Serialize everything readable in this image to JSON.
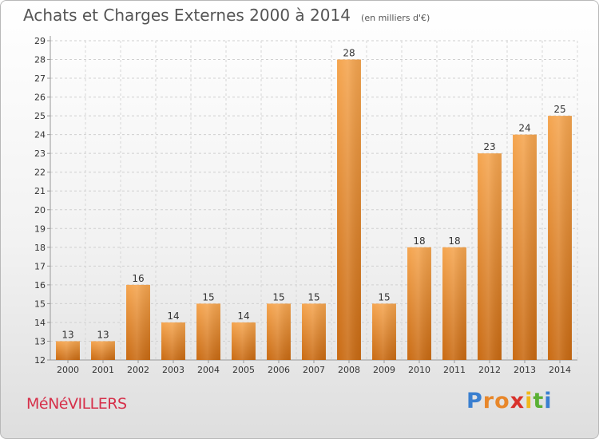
{
  "header": {
    "title": "Achats et Charges Externes 2000 à 2014",
    "subtitle": "(en milliers d'€)"
  },
  "place": "MéNéVILLERS",
  "logo": {
    "letters": [
      "P",
      "r",
      "o",
      "x",
      "i",
      "t",
      "i"
    ],
    "colors": [
      "#3a7fd0",
      "#e8872a",
      "#e8872a",
      "#d8322c",
      "#f0b81c",
      "#5bb034",
      "#3a7fd0"
    ]
  },
  "chart_data": {
    "type": "bar",
    "categories": [
      "2000",
      "2001",
      "2002",
      "2003",
      "2004",
      "2005",
      "2006",
      "2007",
      "2008",
      "2009",
      "2010",
      "2011",
      "2012",
      "2013",
      "2014"
    ],
    "values": [
      13,
      13,
      16,
      14,
      15,
      14,
      15,
      15,
      28,
      15,
      18,
      18,
      23,
      24,
      25
    ],
    "title": "Achats et Charges Externes 2000 à 2014",
    "subtitle": "(en milliers d'€)",
    "xlabel": "",
    "ylabel": "",
    "ylim": [
      12,
      29
    ],
    "yticks": [
      12,
      13,
      14,
      15,
      16,
      17,
      18,
      19,
      20,
      21,
      22,
      23,
      24,
      25,
      26,
      27,
      28,
      29
    ],
    "grid": true,
    "bar_color": "#f0923a",
    "legend": "none"
  }
}
